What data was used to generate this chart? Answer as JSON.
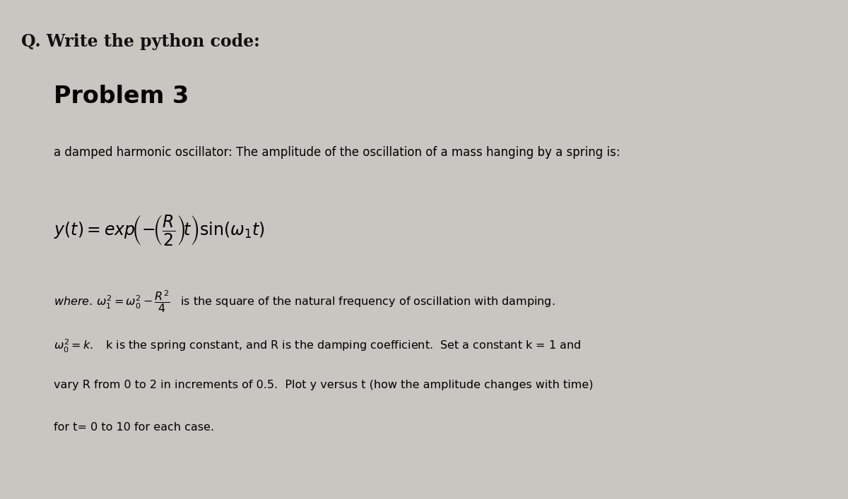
{
  "header_text": "Q. Write the python code:",
  "header_fontsize": 17,
  "header_fontstyle": "bold",
  "header_bg": "#e8e6e0",
  "panel_bg": "#a8a8a0",
  "panel_text_color": "#000000",
  "title": "Problem 3",
  "title_fontsize": 24,
  "title_fontstyle": "bold",
  "line1": "a damped harmonic oscillator: The amplitude of the oscillation of a mass hanging by a spring is:",
  "line1_fontsize": 12,
  "eq_fontsize": 17,
  "line3_fontsize": 11.5,
  "line4_fontsize": 11.5,
  "line5": "vary R from 0 to 2 in increments of 0.5.  Plot y versus t (how the amplitude changes with time)",
  "line5_fontsize": 11.5,
  "line6": "for t= 0 to 10 for each case.",
  "line6_fontsize": 11.5,
  "outer_bg": "#c8c6c0",
  "figwidth": 12.0,
  "figheight": 7.07,
  "dpi": 100
}
